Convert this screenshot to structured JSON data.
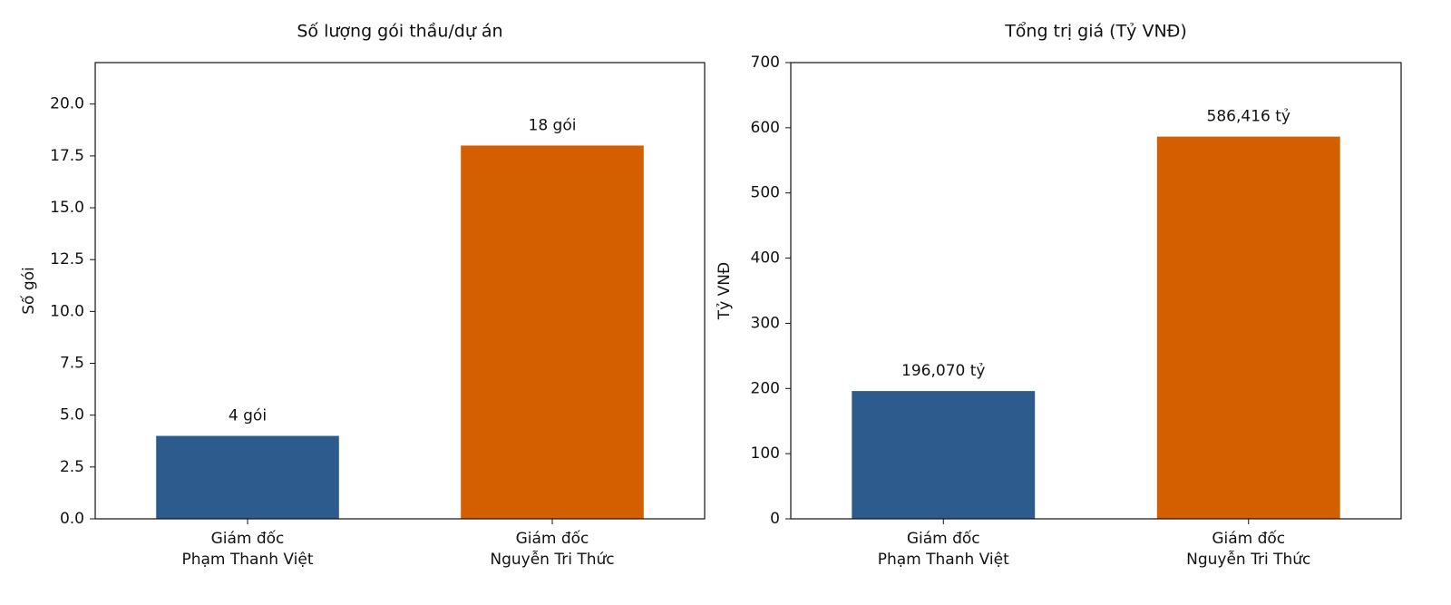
{
  "chart_data": [
    {
      "type": "bar",
      "title": "Số lượng gói thầu/dự án",
      "y_label": "Số gói",
      "categories": [
        "Giám đốc\nPhạm Thanh Việt",
        "Giám đốc\nNguyễn Tri Thức"
      ],
      "values": [
        4,
        18
      ],
      "value_labels": [
        "4 gói",
        "18 gói"
      ],
      "colors": [
        "#2e5b8e",
        "#d45f00"
      ],
      "ylim": [
        0,
        22
      ],
      "yticks": [
        {
          "value": 0,
          "label": "0.0"
        },
        2.5,
        {
          "value": 5,
          "label": "5.0"
        },
        7.5,
        {
          "value": 10,
          "label": "10.0"
        },
        12.5,
        {
          "value": 15,
          "label": "15.0"
        },
        17.5,
        {
          "value": 20,
          "label": "20.0"
        }
      ],
      "grid": false
    },
    {
      "type": "bar",
      "title": "Tổng trị giá (Tỷ VNĐ)",
      "y_label": "Tỷ VNĐ",
      "categories": [
        "Giám đốc\nPhạm Thanh Việt",
        "Giám đốc\nNguyễn Tri Thức"
      ],
      "values": [
        196.07,
        586.416
      ],
      "value_labels": [
        "196,070 tỷ",
        "586,416 tỷ"
      ],
      "colors": [
        "#2e5b8e",
        "#d45f00"
      ],
      "ylim": [
        0,
        700
      ],
      "yticks": [
        0,
        100,
        200,
        300,
        400,
        500,
        600,
        700
      ],
      "grid": false
    }
  ]
}
